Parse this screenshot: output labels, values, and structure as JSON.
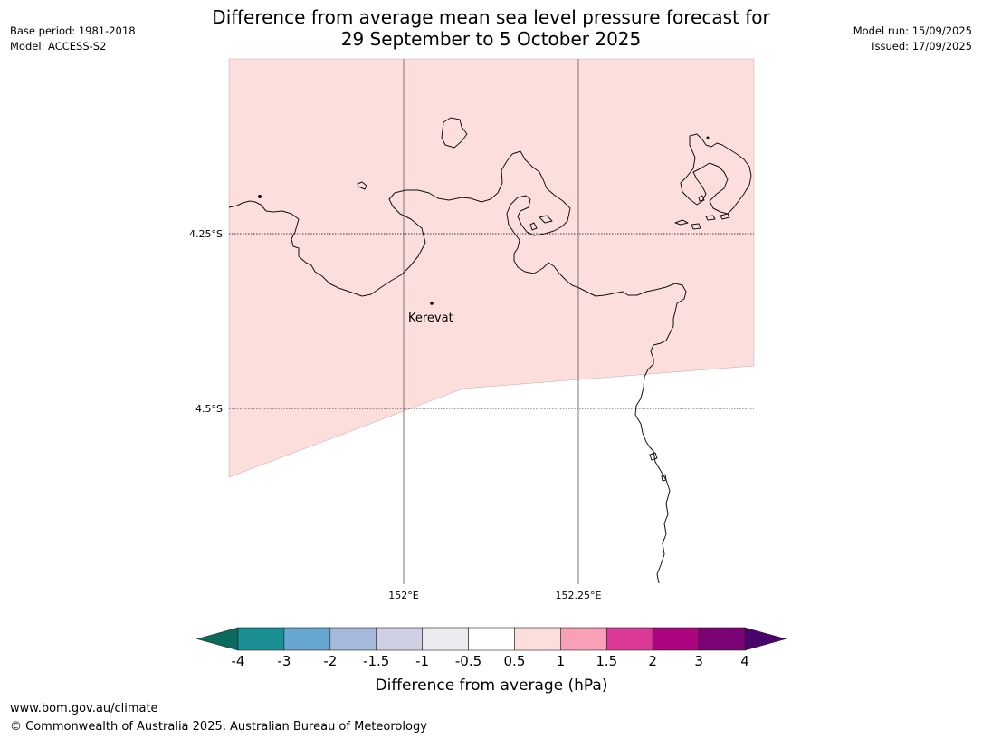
{
  "title": {
    "line1": "Difference from average mean sea level pressure forecast for",
    "line2": "29 September to 5 October 2025"
  },
  "meta_left": {
    "base_period": "Base period: 1981-2018",
    "model": "Model: ACCESS-S2"
  },
  "meta_right": {
    "model_run": "Model run: 15/09/2025",
    "issued": "Issued: 17/09/2025"
  },
  "map": {
    "lat_labels": [
      "4.25°S",
      "4.5°S"
    ],
    "lon_labels": [
      "152°E",
      "152.25°E"
    ],
    "place": "Kerevat",
    "colors": {
      "anomaly_fill": "#fcdedd",
      "coast": "#111111",
      "grid": "#777777"
    }
  },
  "colorbar": {
    "ticks": [
      "-4",
      "-3",
      "-2",
      "-1.5",
      "-1",
      "-0.5",
      "0.5",
      "1",
      "1.5",
      "2",
      "3",
      "4"
    ],
    "colors": [
      "#1b9094",
      "#65a7cf",
      "#a5b9da",
      "#cfd0e4",
      "#ecebef",
      "#ffffff",
      "#fcdedd",
      "#f8a0b7",
      "#dc3997",
      "#ac047f",
      "#7c0375"
    ],
    "extend_low_color": "#0c6a5c",
    "extend_high_color": "#4a036b",
    "label": "Difference from average (hPa)"
  },
  "footer": {
    "url": "www.bom.gov.au/climate",
    "copyright": "© Commonwealth of Australia 2025, Australian Bureau of Meteorology"
  }
}
